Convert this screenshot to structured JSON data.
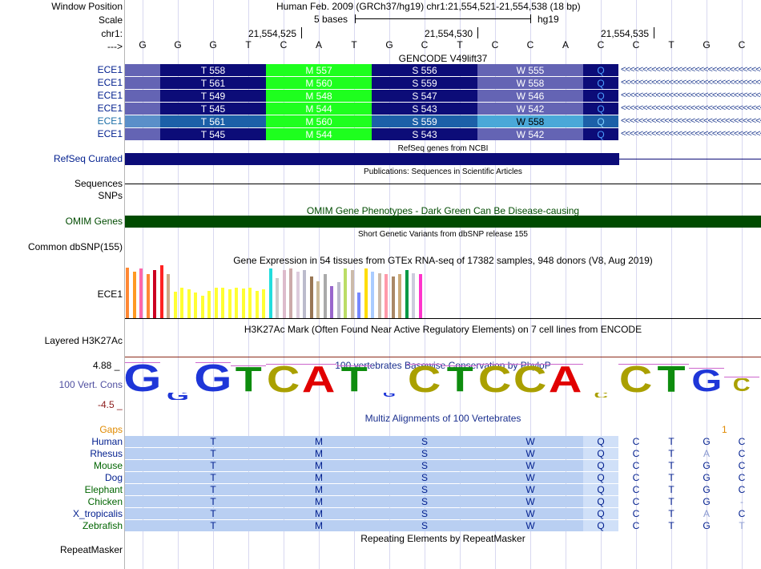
{
  "header": {
    "window_position_label": "Window Position",
    "scale_label": "Scale",
    "chrom_label": "chr1:",
    "strand_label": "--->",
    "assembly_text": "Human Feb. 2009 (GRCh37/hg19)   chr1:21,554,521-21,554,538 (18 bp)",
    "scale_text": "5 bases",
    "scale_db": "hg19",
    "coord1": "21,554,525",
    "coord2": "21,554,530",
    "coord3": "21,554,535",
    "bases": [
      "G",
      "G",
      "G",
      "T",
      "C",
      "A",
      "T",
      "G",
      "C",
      "T",
      "C",
      "C",
      "A",
      "C",
      "C",
      "T",
      "G",
      "C"
    ]
  },
  "gencode": {
    "title": "GENCODE V49lift37",
    "rows": [
      {
        "label": "ECE1",
        "codons": [
          "T 558",
          "M 557",
          "S 556",
          "W 555",
          "Q"
        ]
      },
      {
        "label": "ECE1",
        "codons": [
          "T 561",
          "M 560",
          "S 559",
          "W 558",
          "Q"
        ]
      },
      {
        "label": "ECE1",
        "codons": [
          "T 549",
          "M 548",
          "S 547",
          "W 546",
          "Q"
        ]
      },
      {
        "label": "ECE1",
        "codons": [
          "T 545",
          "M 544",
          "S 543",
          "W 542",
          "Q"
        ]
      },
      {
        "label": "ECE1",
        "codons": [
          "T 561",
          "M 560",
          "S 559",
          "W 558",
          "Q"
        ]
      },
      {
        "label": "ECE1",
        "codons": [
          "T 545",
          "M 544",
          "S 543",
          "W 542",
          "Q"
        ]
      }
    ],
    "arrow_glyphs": "<<<<<<<<<<<<<<<<<<<<<<<<<<<<<<<<<<<<"
  },
  "refseq": {
    "title": "RefSeq genes from NCBI",
    "label": "RefSeq Curated"
  },
  "publications": {
    "title": "Publications: Sequences in Scientific Articles",
    "label": "Sequences"
  },
  "snps": {
    "label": "SNPs"
  },
  "omim": {
    "title": "OMIM Gene Phenotypes - Dark Green Can Be Disease-causing",
    "label": "OMIM Genes"
  },
  "dbsnp": {
    "title": "Short Genetic Variants from dbSNP release 155",
    "label": "Common dbSNP(155)"
  },
  "gtex": {
    "title": "Gene Expression in 54 tissues from GTEx RNA-seq of 17382 samples, 948 donors (V8, Aug 2019)",
    "label": "ECE1",
    "bars": [
      {
        "color": "#ff8833",
        "value": 63
      },
      {
        "color": "#ff9922",
        "value": 58
      },
      {
        "color": "#ff66aa",
        "value": 62
      },
      {
        "color": "#ff8833",
        "value": 55
      },
      {
        "color": "#cc0022",
        "value": 60
      },
      {
        "color": "#ff2222",
        "value": 66
      },
      {
        "color": "#ccaa88",
        "value": 55
      },
      {
        "color": "#ffff33",
        "value": 33
      },
      {
        "color": "#ffff33",
        "value": 38
      },
      {
        "color": "#ffff33",
        "value": 36
      },
      {
        "color": "#ffff33",
        "value": 32
      },
      {
        "color": "#ffff33",
        "value": 28
      },
      {
        "color": "#ffff33",
        "value": 34
      },
      {
        "color": "#ffff33",
        "value": 38
      },
      {
        "color": "#ffff33",
        "value": 38
      },
      {
        "color": "#ffff33",
        "value": 36
      },
      {
        "color": "#ffff33",
        "value": 38
      },
      {
        "color": "#ffff33",
        "value": 37
      },
      {
        "color": "#ffff33",
        "value": 38
      },
      {
        "color": "#ffff33",
        "value": 34
      },
      {
        "color": "#ffff33",
        "value": 36
      },
      {
        "color": "#22dddd",
        "value": 62
      },
      {
        "color": "#cccccc",
        "value": 50
      },
      {
        "color": "#ddbbcc",
        "value": 60
      },
      {
        "color": "#ccaaaa",
        "value": 62
      },
      {
        "color": "#ddccdd",
        "value": 58
      },
      {
        "color": "#bbbbcc",
        "value": 60
      },
      {
        "color": "#997755",
        "value": 52
      },
      {
        "color": "#ccbb99",
        "value": 46
      },
      {
        "color": "#aaaaaa",
        "value": 55
      },
      {
        "color": "#9966cc",
        "value": 40
      },
      {
        "color": "#bbbbcc",
        "value": 45
      },
      {
        "color": "#bbdd66",
        "value": 62
      },
      {
        "color": "#ccbbaa",
        "value": 60
      },
      {
        "color": "#7788ff",
        "value": 32
      },
      {
        "color": "#ffdd00",
        "value": 62
      },
      {
        "color": "#aaccff",
        "value": 58
      },
      {
        "color": "#ccbbaa",
        "value": 56
      },
      {
        "color": "#ff99aa",
        "value": 55
      },
      {
        "color": "#aa8866",
        "value": 52
      },
      {
        "color": "#ccaa77",
        "value": 55
      },
      {
        "color": "#009944",
        "value": 60
      },
      {
        "color": "#ccccdd",
        "value": 56
      },
      {
        "color": "#ff33cc",
        "value": 55
      }
    ]
  },
  "h3k27ac": {
    "title": "H3K27Ac Mark (Often Found Near Active Regulatory Elements) on 7 cell lines from ENCODE",
    "label": "Layered H3K27Ac"
  },
  "phylop": {
    "title": "100 vertebrates Basewise Conservation by PhyloP",
    "label": "100 Vert. Cons",
    "ymax": "4.88 _",
    "ymin": "-4.5 _",
    "letters": [
      "G",
      "G",
      "G",
      "T",
      "C",
      "A",
      "T",
      "G",
      "C",
      "T",
      "C",
      "C",
      "A",
      "C",
      "C",
      "T",
      "G",
      "C"
    ],
    "scores": [
      1.0,
      -0.3,
      1.0,
      0.9,
      0.95,
      0.95,
      0.9,
      -0.1,
      0.95,
      0.9,
      0.95,
      0.95,
      0.95,
      -0.2,
      0.95,
      0.95,
      0.8,
      0.5
    ]
  },
  "multiz": {
    "title": "Multiz Alignments of 100 Vertebrates",
    "gaps_label": "Gaps",
    "gap_mark": "1",
    "species": [
      {
        "name": "Human",
        "codons": [
          "T",
          "M",
          "S",
          "W",
          "Q"
        ],
        "bases": [
          "C",
          "T",
          "G",
          "C"
        ]
      },
      {
        "name": "Rhesus",
        "codons": [
          "T",
          "M",
          "S",
          "W",
          "Q"
        ],
        "bases": [
          "C",
          "T",
          "A",
          "C"
        ]
      },
      {
        "name": "Mouse",
        "codons": [
          "T",
          "M",
          "S",
          "W",
          "Q"
        ],
        "bases": [
          "C",
          "T",
          "G",
          "C"
        ]
      },
      {
        "name": "Dog",
        "codons": [
          "T",
          "M",
          "S",
          "W",
          "Q"
        ],
        "bases": [
          "C",
          "T",
          "G",
          "C"
        ]
      },
      {
        "name": "Elephant",
        "codons": [
          "T",
          "M",
          "S",
          "W",
          "Q"
        ],
        "bases": [
          "C",
          "T",
          "G",
          "C"
        ]
      },
      {
        "name": "Chicken",
        "codons": [
          "T",
          "M",
          "S",
          "W",
          "Q"
        ],
        "bases": [
          "C",
          "T",
          "G",
          "-"
        ]
      },
      {
        "name": "X_tropicalis",
        "codons": [
          "T",
          "M",
          "S",
          "W",
          "Q"
        ],
        "bases": [
          "C",
          "T",
          "A",
          "C"
        ]
      },
      {
        "name": "Zebrafish",
        "codons": [
          "T",
          "M",
          "S",
          "W",
          "Q"
        ],
        "bases": [
          "C",
          "T",
          "G",
          "T"
        ]
      }
    ]
  },
  "repeatmasker": {
    "title": "Repeating Elements by RepeatMasker",
    "label": "RepeatMasker"
  },
  "colors": {
    "navy": "#0c0c78",
    "green": "#1eff1e",
    "slate": "#4c4cac",
    "light_slate": "#6464b4",
    "teal": "#1c60a8",
    "omim_green": "#004b00",
    "label_blue": "#001e8e",
    "label_green": "#006400",
    "multiz_bg": "#b9cff2",
    "multiz_bg_light": "#d0e0f8"
  }
}
